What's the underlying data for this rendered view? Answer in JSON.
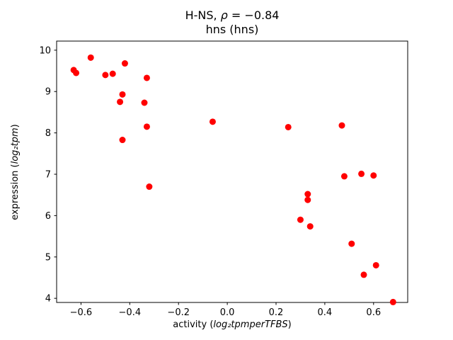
{
  "chart_data": {
    "type": "scatter",
    "title": "H-NS, ρ = −0.84",
    "title_parts": {
      "prefix": "H-NS, ",
      "rho": "ρ",
      "suffix": " = −0.84"
    },
    "subtitle": "hns (hns)",
    "xlabel": "activity (log₂tpmperTFBS)",
    "xlabel_parts": {
      "prefix": "activity (",
      "math": "log₂tpmperTFBS",
      "suffix": ")"
    },
    "ylabel": "expression (log₂tpm)",
    "ylabel_parts": {
      "prefix": "expression (",
      "math": "log₂tpm",
      "suffix": ")"
    },
    "marker_color": "#ff0000",
    "grid": false,
    "legend": "none",
    "xlim": [
      -0.7,
      0.74
    ],
    "ylim": [
      3.9,
      10.22
    ],
    "xticks": [
      {
        "v": -0.6,
        "label": "−0.6"
      },
      {
        "v": -0.4,
        "label": "−0.4"
      },
      {
        "v": -0.2,
        "label": "−0.2"
      },
      {
        "v": 0.0,
        "label": "0.0"
      },
      {
        "v": 0.2,
        "label": "0.2"
      },
      {
        "v": 0.4,
        "label": "0.4"
      },
      {
        "v": 0.6,
        "label": "0.6"
      }
    ],
    "yticks": [
      {
        "v": 4,
        "label": "4"
      },
      {
        "v": 5,
        "label": "5"
      },
      {
        "v": 6,
        "label": "6"
      },
      {
        "v": 7,
        "label": "7"
      },
      {
        "v": 8,
        "label": "8"
      },
      {
        "v": 9,
        "label": "9"
      },
      {
        "v": 10,
        "label": "10"
      }
    ],
    "points": [
      {
        "x": -0.63,
        "y": 9.52
      },
      {
        "x": -0.62,
        "y": 9.45
      },
      {
        "x": -0.56,
        "y": 9.82
      },
      {
        "x": -0.5,
        "y": 9.4
      },
      {
        "x": -0.47,
        "y": 9.43
      },
      {
        "x": -0.42,
        "y": 9.68
      },
      {
        "x": -0.43,
        "y": 8.93
      },
      {
        "x": -0.44,
        "y": 8.75
      },
      {
        "x": -0.43,
        "y": 7.83
      },
      {
        "x": -0.33,
        "y": 9.33
      },
      {
        "x": -0.34,
        "y": 8.73
      },
      {
        "x": -0.33,
        "y": 8.15
      },
      {
        "x": -0.32,
        "y": 6.7
      },
      {
        "x": -0.06,
        "y": 8.27
      },
      {
        "x": 0.25,
        "y": 8.14
      },
      {
        "x": 0.3,
        "y": 5.9
      },
      {
        "x": 0.33,
        "y": 6.52
      },
      {
        "x": 0.33,
        "y": 6.38
      },
      {
        "x": 0.34,
        "y": 5.74
      },
      {
        "x": 0.47,
        "y": 8.18
      },
      {
        "x": 0.48,
        "y": 6.95
      },
      {
        "x": 0.51,
        "y": 5.32
      },
      {
        "x": 0.55,
        "y": 7.01
      },
      {
        "x": 0.56,
        "y": 4.57
      },
      {
        "x": 0.6,
        "y": 6.97
      },
      {
        "x": 0.61,
        "y": 4.8
      },
      {
        "x": 0.68,
        "y": 3.91
      }
    ]
  }
}
